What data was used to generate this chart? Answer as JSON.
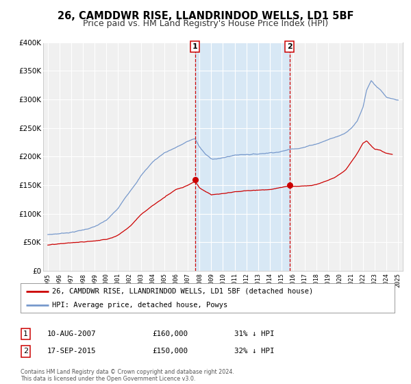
{
  "title": "26, CAMDDWR RISE, LLANDRINDOD WELLS, LD1 5BF",
  "subtitle": "Price paid vs. HM Land Registry's House Price Index (HPI)",
  "ylim": [
    0,
    400000
  ],
  "xlim_start": 1994.6,
  "xlim_end": 2025.4,
  "yticks": [
    0,
    50000,
    100000,
    150000,
    200000,
    250000,
    300000,
    350000,
    400000
  ],
  "ytick_labels": [
    "£0",
    "£50K",
    "£100K",
    "£150K",
    "£200K",
    "£250K",
    "£300K",
    "£350K",
    "£400K"
  ],
  "xticks": [
    1995,
    1996,
    1997,
    1998,
    1999,
    2000,
    2001,
    2002,
    2003,
    2004,
    2005,
    2006,
    2007,
    2008,
    2009,
    2010,
    2011,
    2012,
    2013,
    2014,
    2015,
    2016,
    2017,
    2018,
    2019,
    2020,
    2021,
    2022,
    2023,
    2024,
    2025
  ],
  "background_color": "#ffffff",
  "plot_bg_color": "#f0f0f0",
  "grid_color": "#ffffff",
  "hpi_color": "#7799cc",
  "price_color": "#cc0000",
  "sale1_x": 2007.607,
  "sale1_y": 160000,
  "sale2_x": 2015.706,
  "sale2_y": 150000,
  "shade_color": "#d8e8f5",
  "vline_color": "#cc0000",
  "legend_line1": "26, CAMDDWR RISE, LLANDRINDOD WELLS, LD1 5BF (detached house)",
  "legend_line2": "HPI: Average price, detached house, Powys",
  "table_row1": [
    "1",
    "10-AUG-2007",
    "£160,000",
    "31% ↓ HPI"
  ],
  "table_row2": [
    "2",
    "17-SEP-2015",
    "£150,000",
    "32% ↓ HPI"
  ],
  "footnote": "Contains HM Land Registry data © Crown copyright and database right 2024.\nThis data is licensed under the Open Government Licence v3.0.",
  "title_fontsize": 10.5,
  "subtitle_fontsize": 9
}
